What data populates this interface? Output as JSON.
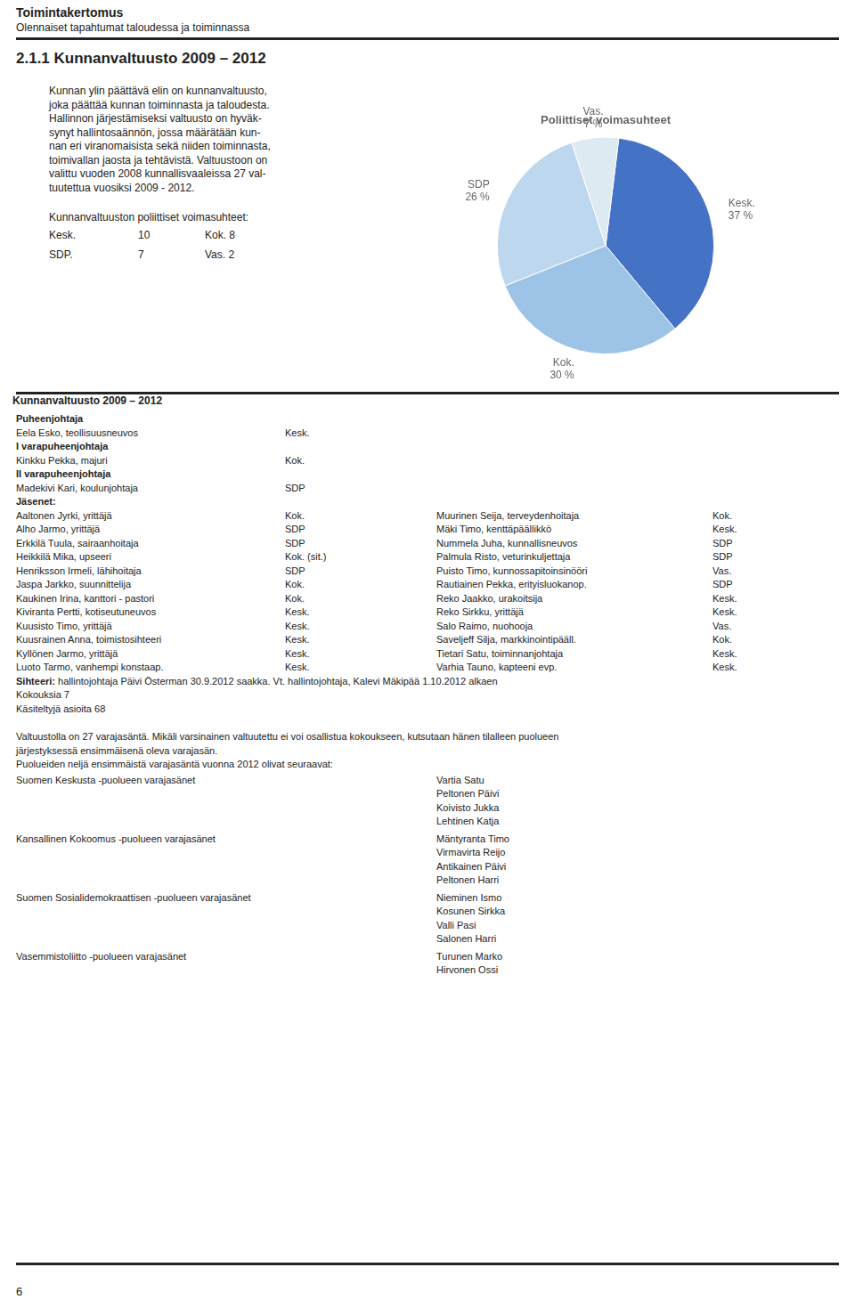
{
  "chart_data": {
    "type": "pie",
    "title": "Poliittiset voimasuhteet",
    "categories": [
      "Kesk.",
      "Kok.",
      "SDP",
      "Vas."
    ],
    "values": [
      37,
      30,
      26,
      7
    ],
    "value_labels": [
      "37 %",
      "30 %",
      "26 %",
      "7 %"
    ],
    "colors": [
      "#4472C4",
      "#9DC3E6",
      "#BDD7EE",
      "#DEEAF1"
    ],
    "data_labels": true,
    "legend": false,
    "annotations": [
      "Toimintakertomus",
      "Olennaiset tapahtumat taloudessa ja toiminnassa",
      "2.1.1    Kunnanvaltuusto 2009 – 2012",
      [
        "Kunnan ylin päättävä elin on kunnanvaltuusto,",
        "joka päättää kunnan toiminnasta ja taloudesta.",
        "Hallinnon järjestämiseksi valtuusto on hyväk-",
        "synyt hallintosaännön, jossa määrätään kun-",
        "nan eri viranomaisista sekä niiden toiminnasta,",
        "toimivallan jaosta ja tehtävistä. Valtuustoon on",
        "valittu vuoden 2008 kunnallisvaaleissa 27 val-",
        "tuutettua vuosiksi 2009 - 2012."
      ],
      "Kunnanvaltuuston poliittiset voimasuhteet:",
      [
        [
          "Kesk.",
          "10",
          "Kok. 8"
        ],
        [
          "SDP.",
          "7",
          "Vas. 2"
        ]
      ],
      "Kunnanvaltuusto 2009 – 2012",
      [
        [
          "Puheenjohtaja"
        ],
        [
          "Eela Esko, teollisuusneuvos",
          "Kesk."
        ],
        [
          "I varapuheenjohtaja"
        ],
        [
          "Kinkku Pekka, majuri",
          "Kok."
        ],
        [
          "II varapuheenjohtaja"
        ],
        [
          "Madekivi Kari, koulunjohtaja",
          "SDP"
        ],
        [
          "Jäsenet:"
        ],
        [
          "Aaltonen Jyrki, yrittäjä",
          "Kok.",
          "Muurinen Seija, terveydenhoitaja",
          "Kok."
        ],
        [
          "Alho Jarmo, yrittäjä",
          "SDP",
          "Mäki Timo, kenttäpäällikkö",
          "Kesk."
        ],
        [
          "Erkkilä Tuula, sairaanhoitaja",
          "SDP",
          "Nummela Juha, kunnallisneuvos",
          "SDP"
        ],
        [
          "Heikkilä Mika, upseeri",
          "Kok. (sit.)",
          "Palmula Risto, veturinkuljettaja",
          "SDP"
        ],
        [
          "Henriksson Irmeli, lähihoitaja",
          "SDP",
          "Puisto Timo, kunnossapitoinsinööri",
          "Vas."
        ],
        [
          "Jaspa Jarkko, suunnittelija",
          "Kok.",
          "Rautiainen Pekka, erityisluokanop.",
          "SDP"
        ],
        [
          "Kaukinen Irina, kanttori - pastori",
          "Kok.",
          "Reko Jaakko, urakoitsija",
          "Kesk."
        ],
        [
          "Kiviranta Pertti, kotiseutuneuvos",
          "Kesk.",
          "Reko Sirkku, yrittäjä",
          "Kesk."
        ],
        [
          "Kuusisto Timo, yrittäjä",
          "Kesk.",
          "Salo Raimo, nuohooja",
          "Vas."
        ],
        [
          "Kuusrainen Anna, toimistosihteeri",
          "Kesk.",
          "Saveljeff Silja, markkinointipääll.",
          "Kok."
        ],
        [
          "Kyllönen Jarmo, yrittäjä",
          "Kesk.",
          "Tietari Satu, toiminnanjohtaja",
          "Kesk."
        ],
        [
          "Luoto Tarmo, vanhempi konstaap.",
          "Kesk.",
          "Varhia Tauno, kapteeni evp.",
          "Kesk."
        ]
      ],
      [
        [
          "Sihteeri:",
          "hallintojohtaja Päivi Österman 30.9.2012 saakka. Vt. hallintojohtaja, Kalevi Mäkipää 1.10.2012 alkaen"
        ],
        [
          "Kokouksia 7"
        ],
        [
          "Käsiteltyjä asioita 68"
        ]
      ],
      [
        "Valtuustolla on 27 varajasäntä. Mikäli varsinainen valtuutettu ei voi osallistua kokoukseen, kutsutaan hänen tilalleen puolueen",
        "järjestyksessä ensimmäisenä oleva varajasän.",
        "Puolueiden neljä ensimmäistä varajasäntä vuonna 2012 olivat seuraavat:"
      ],
      [
        [
          "Suomen Keskusta -puolueen varajasänet",
          [
            "Vartia Satu",
            "Peltonen Päivi",
            "Koivisto Jukka",
            "Lehtinen Katja"
          ]
        ],
        [
          "Kansallinen Kokoomus -puolueen varajasänet",
          [
            "Mäntyranta Timo",
            "Virmavirta Reijo",
            "Antikainen Päivi",
            "Peltonen Harri"
          ]
        ],
        [
          "Suomen Sosialidemokraattisen -puolueen varajasänet",
          [
            "Nieminen Ismo",
            "Kosunen Sirkka",
            "Valli Pasi",
            "Salonen Harri"
          ]
        ],
        [
          "Vasemmistoliitto -puolueen varajasänet",
          [
            "Turunen Marko",
            "Hirvonen Ossi"
          ]
        ]
      ],
      "6"
    ]
  }
}
